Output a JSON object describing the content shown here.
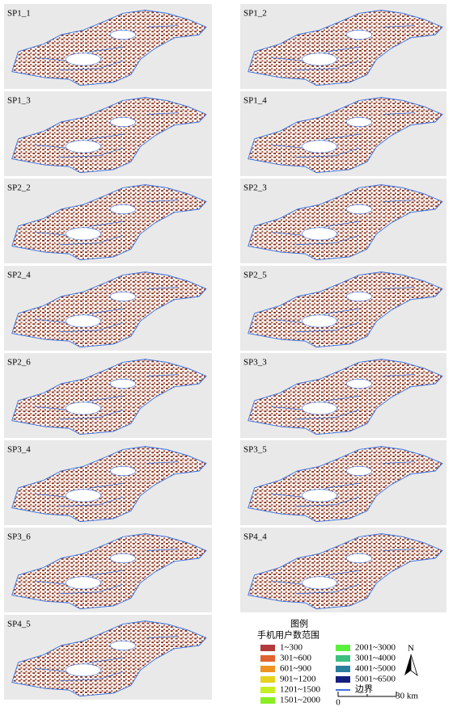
{
  "panels": [
    {
      "label": "SP1_1"
    },
    {
      "label": "SP1_2"
    },
    {
      "label": "SP1_3"
    },
    {
      "label": "SP1_4"
    },
    {
      "label": "SP2_2"
    },
    {
      "label": "SP2_3"
    },
    {
      "label": "SP2_4"
    },
    {
      "label": "SP2_5"
    },
    {
      "label": "SP2_6"
    },
    {
      "label": "SP3_3"
    },
    {
      "label": "SP3_4"
    },
    {
      "label": "SP3_5"
    },
    {
      "label": "SP3_6"
    },
    {
      "label": "SP4_4"
    },
    {
      "label": "SP4_5"
    }
  ],
  "legend": {
    "title": "图例",
    "subtitle": "手机用户数范围",
    "items": [
      {
        "label": "1~300",
        "color": "#b23a3a"
      },
      {
        "label": "301~600",
        "color": "#e0622e"
      },
      {
        "label": "601~900",
        "color": "#ee9322"
      },
      {
        "label": "901~1200",
        "color": "#e6d21e"
      },
      {
        "label": "1201~1500",
        "color": "#c6ee22"
      },
      {
        "label": "1501~2000",
        "color": "#8aee22"
      },
      {
        "label": "2001~3000",
        "color": "#5cf03e"
      },
      {
        "label": "3001~4000",
        "color": "#3cbf80"
      },
      {
        "label": "4001~5000",
        "color": "#2a7f9e"
      },
      {
        "label": "5001~6500",
        "color": "#14207e"
      }
    ],
    "boundary": {
      "label": "边界",
      "color": "#3a72e0"
    }
  },
  "north": "N",
  "scale": {
    "start": "0",
    "end": "30 km"
  }
}
